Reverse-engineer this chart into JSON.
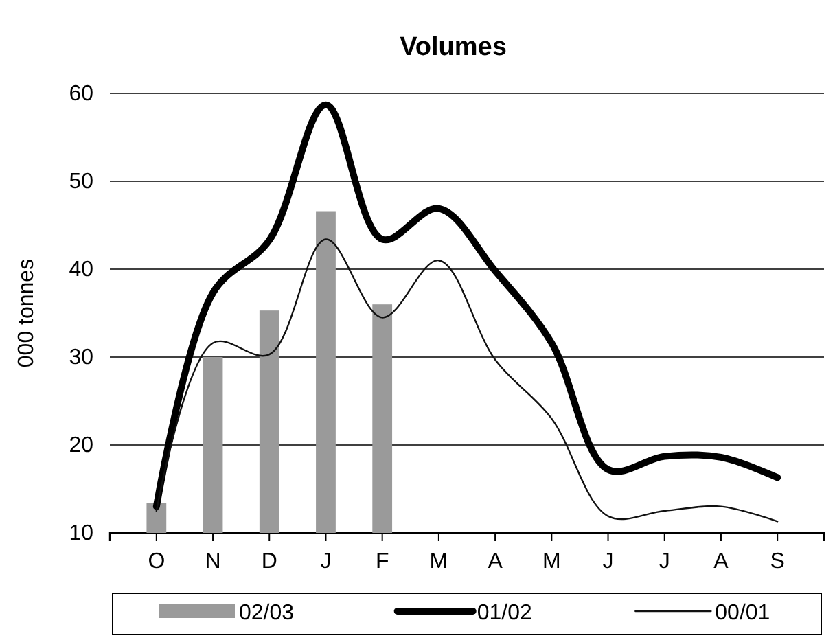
{
  "chart_data": {
    "type": "line",
    "title": "Volumes",
    "ylabel": "000 tonnes",
    "categories": [
      "O",
      "N",
      "D",
      "J",
      "F",
      "M",
      "A",
      "M",
      "J",
      "J",
      "A",
      "S"
    ],
    "series": [
      {
        "name": "02/03",
        "type": "bar",
        "color": "#9a9a9a",
        "values": [
          13.4,
          30,
          35.3,
          46.6,
          36,
          null,
          null,
          null,
          null,
          null,
          null,
          null
        ]
      },
      {
        "name": "01/02",
        "color": "#000000",
        "line_style": "solid",
        "values": [
          13,
          37.3,
          43.3,
          58.7,
          43.4,
          46.9,
          39.8,
          31.6,
          17.2,
          18.7,
          18.6,
          16.3
        ]
      },
      {
        "name": "00/01",
        "color": "#111111",
        "values": [
          12.5,
          31.6,
          30.3,
          43.4,
          34.5,
          41,
          29.7,
          23,
          11.9,
          12.5,
          13,
          11.3
        ]
      }
    ],
    "ylim": [
      10,
      60
    ],
    "yticks": [
      10,
      20,
      30,
      40,
      50,
      60
    ],
    "grid": "y",
    "legend": "bottom"
  }
}
